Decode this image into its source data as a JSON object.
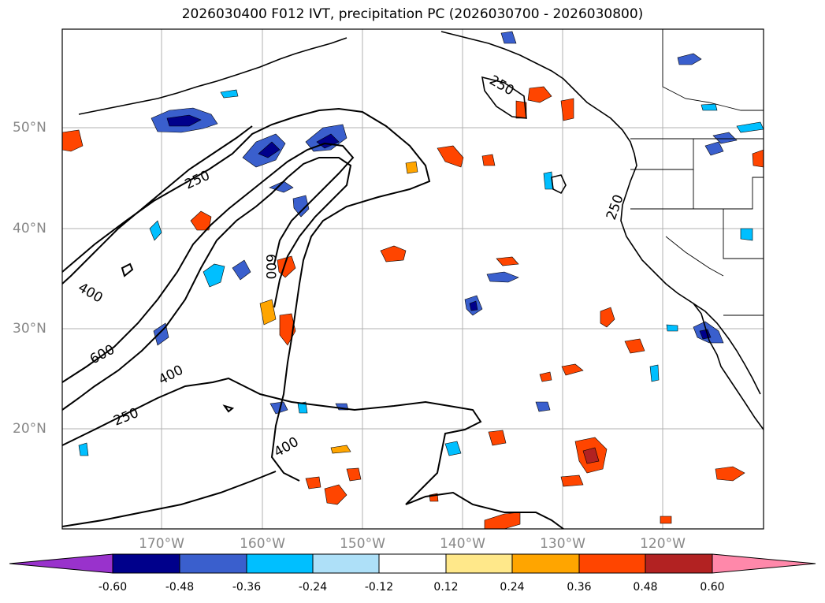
{
  "title": "2026030400 F012 IVT, precipitation PC (2026030700 - 2026030800)",
  "latitude_labels": [
    "50°N",
    "40°N",
    "30°N",
    "20°N"
  ],
  "longitude_labels": [
    "170°W",
    "160°W",
    "150°W",
    "140°W",
    "130°W",
    "120°W"
  ],
  "ivt_contour_labels": [
    "250",
    "250",
    "400",
    "600",
    "400",
    "250",
    "400",
    "600",
    "250"
  ],
  "colorbar": {
    "ticks": [
      "-0.60",
      "-0.48",
      "-0.36",
      "-0.24",
      "-0.12",
      "0.12",
      "0.24",
      "0.36",
      "0.48",
      "0.60"
    ],
    "colors": [
      "#9932cc",
      "#00008b",
      "#3a5fcd",
      "#00bfff",
      "#aee0f8",
      "#ffffff",
      "#ffe88a",
      "#ffa500",
      "#ff4500",
      "#b22222",
      "#ff88aa"
    ]
  },
  "colors": {
    "contour": "#000000",
    "grid": "#b0b0b0",
    "coast": "#000000"
  }
}
